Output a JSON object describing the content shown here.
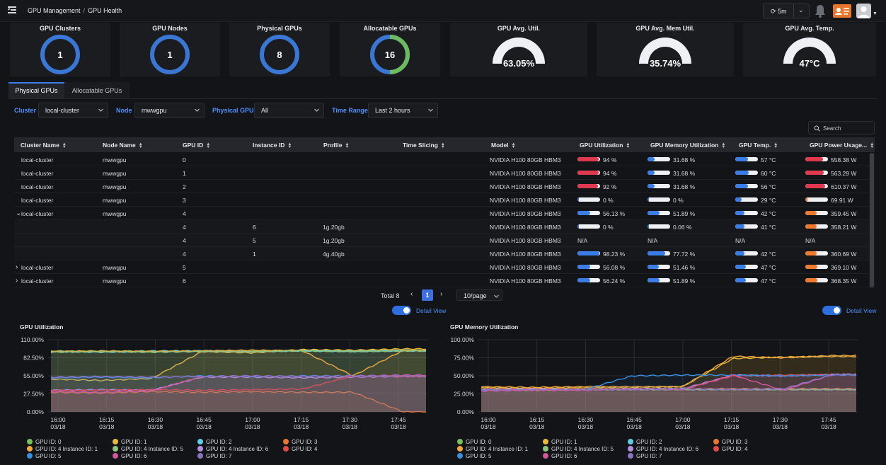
{
  "breadcrumb": {
    "root": "GPU Management",
    "current": "GPU Health"
  },
  "header": {
    "refresh_interval": "5m"
  },
  "stats": [
    {
      "title": "GPU Clusters",
      "value": "1",
      "kind": "donut",
      "fraction": 1.0
    },
    {
      "title": "GPU Nodes",
      "value": "1",
      "kind": "donut",
      "fraction": 1.0
    },
    {
      "title": "Physical GPUs",
      "value": "8",
      "kind": "donut",
      "fraction": 1.0
    },
    {
      "title": "Allocatable GPUs",
      "value": "16",
      "kind": "donut",
      "fraction": 0.5
    }
  ],
  "gauges": [
    {
      "title": "GPU Avg. Util.",
      "value": "63.05%",
      "fraction": 0.6305
    },
    {
      "title": "GPU Avg. Mem Util.",
      "value": "35.74%",
      "fraction": 0.3574
    },
    {
      "title": "GPU Avg. Temp.",
      "value": "47°C",
      "fraction": 0.47
    }
  ],
  "tabs": [
    {
      "label": "Physical GPUs",
      "active": true
    },
    {
      "label": "Allocatable GPUs",
      "active": false
    }
  ],
  "filters": {
    "cluster_label": "Cluster",
    "cluster_value": "local-cluster",
    "node_label": "Node",
    "node_value": "mwwgpu",
    "gpu_label": "Physical GPU",
    "gpu_value": "All",
    "time_label": "Time Range",
    "time_value": "Last 2 hours"
  },
  "search": {
    "placeholder": "Search"
  },
  "table": {
    "columns": [
      "Cluster Name",
      "Node Name",
      "GPU ID",
      "Instance ID",
      "Profile",
      "Time Slicing",
      "Model",
      "GPU Utilization",
      "GPU Memory Utilization",
      "GPU Temp.",
      "GPU Power Usage..."
    ],
    "rows": [
      {
        "expander": "",
        "cluster": "local-cluster",
        "node": "mwwgpu",
        "gpu": "0",
        "instance": "",
        "profile": "",
        "model": "NVIDIA H100 80GB HBM3",
        "util": "94 %",
        "util_pct": 94,
        "mem": "31.68 %",
        "mem_pct": 31.68,
        "temp": "57 °C",
        "temp_pct": 57,
        "power": "558.38 W",
        "power_pct": 79
      },
      {
        "expander": "",
        "cluster": "local-cluster",
        "node": "mwwgpu",
        "gpu": "1",
        "instance": "",
        "profile": "",
        "model": "NVIDIA H100 80GB HBM3",
        "util": "94 %",
        "util_pct": 94,
        "mem": "31.68 %",
        "mem_pct": 31.68,
        "temp": "60 °C",
        "temp_pct": 60,
        "power": "563.29 W",
        "power_pct": 80
      },
      {
        "expander": "",
        "cluster": "local-cluster",
        "node": "mwwgpu",
        "gpu": "2",
        "instance": "",
        "profile": "",
        "model": "NVIDIA H100 80GB HBM3",
        "util": "92 %",
        "util_pct": 92,
        "mem": "31.68 %",
        "mem_pct": 31.68,
        "temp": "56 °C",
        "temp_pct": 56,
        "power": "610.37 W",
        "power_pct": 87
      },
      {
        "expander": "",
        "cluster": "local-cluster",
        "node": "mwwgpu",
        "gpu": "3",
        "instance": "",
        "profile": "",
        "model": "NVIDIA H100 80GB HBM3",
        "util": "0 %",
        "util_pct": 0,
        "mem": "0 %",
        "mem_pct": 0,
        "temp": "29 °C",
        "temp_pct": 29,
        "power": "69.91 W",
        "power_pct": 10
      },
      {
        "expander": "⌄",
        "cluster": "local-cluster",
        "node": "mwwgpu",
        "gpu": "4",
        "instance": "",
        "profile": "",
        "model": "NVIDIA H100 80GB HBM3",
        "util": "56.13 %",
        "util_pct": 56.13,
        "mem": "51.89 %",
        "mem_pct": 51.89,
        "temp": "42 °C",
        "temp_pct": 42,
        "power": "359.45 W",
        "power_pct": 51
      },
      {
        "expander": "",
        "cluster": "",
        "node": "",
        "gpu": "4",
        "instance": "6",
        "profile": "1g.20gb",
        "model": "NVIDIA H100 80GB HBM3",
        "util": "0 %",
        "util_pct": 0,
        "mem": "0.06 %",
        "mem_pct": 0.06,
        "temp": "41 °C",
        "temp_pct": 41,
        "power": "358.21 W",
        "power_pct": 51
      },
      {
        "expander": "",
        "cluster": "",
        "node": "",
        "gpu": "4",
        "instance": "5",
        "profile": "1g.20gb",
        "model": "NVIDIA H100 80GB HBM3",
        "util": "N/A",
        "util_pct": null,
        "mem": "N/A",
        "mem_pct": null,
        "temp": "N/A",
        "temp_pct": null,
        "power": "N/A",
        "power_pct": null
      },
      {
        "expander": "",
        "cluster": "",
        "node": "",
        "gpu": "4",
        "instance": "1",
        "profile": "4g.40gb",
        "model": "NVIDIA H100 80GB HBM3",
        "util": "98.23 %",
        "util_pct": 98.23,
        "mem": "77.72 %",
        "mem_pct": 77.72,
        "temp": "42 °C",
        "temp_pct": 42,
        "power": "360.69 W",
        "power_pct": 51
      },
      {
        "expander": "›",
        "cluster": "local-cluster",
        "node": "mwwgpu",
        "gpu": "5",
        "instance": "",
        "profile": "",
        "model": "NVIDIA H100 80GB HBM3",
        "util": "56.08 %",
        "util_pct": 56.08,
        "mem": "51.46 %",
        "mem_pct": 51.46,
        "temp": "47 °C",
        "temp_pct": 47,
        "power": "369.10 W",
        "power_pct": 52
      },
      {
        "expander": "›",
        "cluster": "local-cluster",
        "node": "mwwgpu",
        "gpu": "6",
        "instance": "",
        "profile": "",
        "model": "NVIDIA H100 80GB HBM3",
        "util": "56.24 %",
        "util_pct": 56.24,
        "mem": "51.89 %",
        "mem_pct": 51.89,
        "temp": "47 °C",
        "temp_pct": 47,
        "power": "368.35 W",
        "power_pct": 52
      }
    ]
  },
  "pagination": {
    "total": "Total 8",
    "page": "1",
    "page_size": "10/page"
  },
  "detail_view_label": "Detail View",
  "colors": {
    "accent": "#3e7fe8",
    "util_high": "#e0394f",
    "bar_blue": "#3b7de6",
    "power": "#f07a2e"
  },
  "chart_data": [
    {
      "type": "line",
      "title": "GPU Utilization",
      "x": [
        "16:00 03/18",
        "16:15 03/18",
        "16:30 03/18",
        "16:45 03/18",
        "17:00 03/18",
        "17:15 03/18",
        "17:30 03/18",
        "17:45 03/18"
      ],
      "ylim": [
        0,
        110
      ],
      "yticks": [
        "110.00%",
        "82.50%",
        "55.00%",
        "27.50%",
        "0.00%"
      ],
      "grid": true,
      "legend_position": "bottom",
      "series": [
        {
          "name": "GPU ID: 0",
          "color": "#7bbf5a",
          "values": [
            93,
            92,
            93,
            93,
            93,
            94,
            93,
            94
          ]
        },
        {
          "name": "GPU ID: 1",
          "color": "#e8b93a",
          "values": [
            50,
            48,
            51,
            92,
            90,
            95,
            94,
            96
          ]
        },
        {
          "name": "GPU ID: 2",
          "color": "#5ccfe6",
          "values": [
            92,
            91,
            92,
            93,
            92,
            93,
            92,
            93
          ]
        },
        {
          "name": "GPU ID: 3",
          "color": "#e8772e",
          "values": [
            30,
            29,
            31,
            30,
            31,
            30,
            30,
            0
          ]
        },
        {
          "name": "GPU ID: 4 Instance ID: 1",
          "color": "#f2a93b",
          "values": [
            92,
            93,
            92,
            93,
            94,
            93,
            55,
            94
          ]
        },
        {
          "name": "GPU ID: 4 Instance ID: 5",
          "color": "#8fc47a",
          "values": [
            91,
            92,
            91,
            92,
            92,
            93,
            92,
            93
          ]
        },
        {
          "name": "GPU ID: 4 Instance ID: 6",
          "color": "#b48fe0",
          "values": [
            33,
            34,
            33,
            53,
            53,
            52,
            53,
            54
          ]
        },
        {
          "name": "GPU ID: 4",
          "color": "#e04a4a",
          "values": [
            33,
            33,
            34,
            33,
            34,
            35,
            55,
            54
          ]
        },
        {
          "name": "GPU ID: 5",
          "color": "#3b8ee0",
          "values": [
            52,
            53,
            52,
            55,
            54,
            55,
            55,
            55
          ]
        },
        {
          "name": "GPU ID: 6",
          "color": "#d4579a",
          "values": [
            31,
            30,
            32,
            54,
            55,
            54,
            55,
            56
          ]
        },
        {
          "name": "GPU ID: 7",
          "color": "#8a72c2",
          "values": [
            53,
            54,
            53,
            54,
            55,
            54,
            55,
            55
          ]
        }
      ]
    },
    {
      "type": "line",
      "title": "GPU Memory Utilization",
      "x": [
        "16:00 03/18",
        "16:15 03/18",
        "16:30 03/18",
        "16:45 03/18",
        "17:00 03/18",
        "17:15 03/18",
        "17:30 03/18",
        "17:45 03/18"
      ],
      "ylim": [
        0,
        100
      ],
      "yticks": [
        "100.00%",
        "75.00%",
        "50.00%",
        "25.00%",
        "0.00%"
      ],
      "grid": true,
      "legend_position": "bottom",
      "series": [
        {
          "name": "GPU ID: 0",
          "color": "#7bbf5a",
          "values": [
            32,
            32,
            32,
            32,
            32,
            32,
            32,
            32
          ]
        },
        {
          "name": "GPU ID: 1",
          "color": "#e8b93a",
          "values": [
            34,
            33,
            34,
            34,
            35,
            74,
            76,
            77
          ]
        },
        {
          "name": "GPU ID: 2",
          "color": "#5ccfe6",
          "values": [
            31,
            31,
            31,
            31,
            31,
            31,
            31,
            31
          ]
        },
        {
          "name": "GPU ID: 3",
          "color": "#e8772e",
          "values": [
            32,
            32,
            32,
            32,
            32,
            32,
            32,
            32
          ]
        },
        {
          "name": "GPU ID: 4 Instance ID: 1",
          "color": "#f2a93b",
          "values": [
            35,
            34,
            35,
            35,
            35,
            77,
            75,
            78
          ]
        },
        {
          "name": "GPU ID: 4 Instance ID: 5",
          "color": "#8fc47a",
          "values": [
            31,
            30,
            31,
            31,
            31,
            31,
            31,
            31
          ]
        },
        {
          "name": "GPU ID: 4 Instance ID: 6",
          "color": "#b48fe0",
          "values": [
            31,
            32,
            31,
            32,
            32,
            51,
            50,
            52
          ]
        },
        {
          "name": "GPU ID: 4",
          "color": "#e04a4a",
          "values": [
            30,
            30,
            31,
            32,
            31,
            50,
            51,
            52
          ]
        },
        {
          "name": "GPU ID: 5",
          "color": "#3b8ee0",
          "values": [
            30,
            31,
            30,
            50,
            51,
            51,
            50,
            51
          ]
        },
        {
          "name": "GPU ID: 6",
          "color": "#d4579a",
          "values": [
            29,
            30,
            30,
            32,
            31,
            51,
            30,
            52
          ]
        },
        {
          "name": "GPU ID: 7",
          "color": "#8a72c2",
          "values": [
            31,
            31,
            31,
            31,
            32,
            31,
            32,
            52
          ]
        }
      ]
    }
  ]
}
